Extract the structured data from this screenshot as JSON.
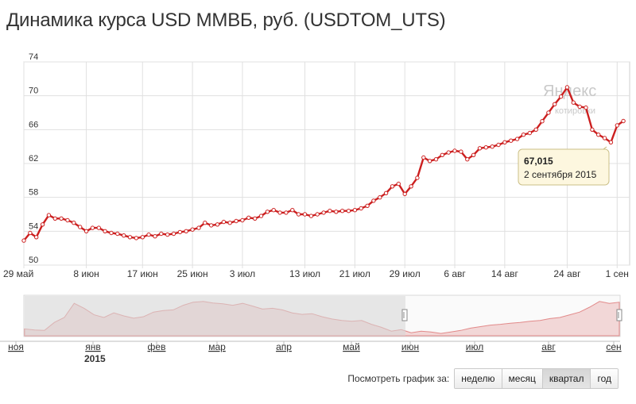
{
  "page": {
    "title": "Динамика курса USD ММВБ, руб. (USDTOM_UTS)"
  },
  "watermark": {
    "brand": "Яндекс",
    "sub": "котировки"
  },
  "tooltip": {
    "value": "67,015",
    "date": "2 сентября 2015"
  },
  "navigator": {
    "months": [
      "ноя",
      "янв",
      "фев",
      "мар",
      "апр",
      "май",
      "июн",
      "июл",
      "авг",
      "сен"
    ],
    "year": "2015",
    "profile": [
      0.18,
      0.15,
      0.14,
      0.35,
      0.48,
      0.85,
      0.72,
      0.55,
      0.48,
      0.6,
      0.52,
      0.46,
      0.5,
      0.62,
      0.66,
      0.68,
      0.8,
      0.88,
      0.9,
      0.86,
      0.84,
      0.8,
      0.85,
      0.78,
      0.7,
      0.72,
      0.68,
      0.6,
      0.56,
      0.58,
      0.5,
      0.44,
      0.4,
      0.38,
      0.4,
      0.3,
      0.22,
      0.12,
      0.16,
      0.08,
      0.12,
      0.1,
      0.06,
      0.1,
      0.14,
      0.2,
      0.24,
      0.28,
      0.3,
      0.33,
      0.35,
      0.38,
      0.4,
      0.45,
      0.48,
      0.55,
      0.62,
      0.75,
      0.9,
      0.85,
      0.88
    ]
  },
  "period": {
    "label": "Посмотреть график за:",
    "buttons": [
      "неделю",
      "месяц",
      "квартал",
      "год"
    ],
    "active": "квартал"
  },
  "colors": {
    "line": "#cc1f1f",
    "grid": "#e0e0e0",
    "navigator_fill": "#f2d7d7",
    "navigator_line": "#e28a8a",
    "navigator_shade": "#e6e6e6"
  },
  "chart_data": {
    "type": "line",
    "title": "Динамика курса USD ММВБ, руб. (USDTOM_UTS)",
    "ylim": [
      50,
      74
    ],
    "yticks": [
      50,
      54,
      58,
      62,
      66,
      70,
      74
    ],
    "xlim": [
      "2015-05-29",
      "2015-09-03"
    ],
    "xticks": [
      {
        "label": "29 май",
        "date": "2015-05-29"
      },
      {
        "label": "8 июн",
        "date": "2015-06-08"
      },
      {
        "label": "17 июн",
        "date": "2015-06-17"
      },
      {
        "label": "25 июн",
        "date": "2015-06-25"
      },
      {
        "label": "3 июл",
        "date": "2015-07-03"
      },
      {
        "label": "13 июл",
        "date": "2015-07-13"
      },
      {
        "label": "21 июл",
        "date": "2015-07-21"
      },
      {
        "label": "29 июл",
        "date": "2015-07-29"
      },
      {
        "label": "6 авг",
        "date": "2015-08-06"
      },
      {
        "label": "14 авг",
        "date": "2015-08-14"
      },
      {
        "label": "24 авг",
        "date": "2015-08-24"
      },
      {
        "label": "1 сен",
        "date": "2015-09-01"
      }
    ],
    "grid": true,
    "series": [
      {
        "points": [
          [
            "2015-05-29",
            52.9
          ],
          [
            "2015-05-30",
            53.8
          ],
          [
            "2015-05-31",
            53.3
          ],
          [
            "2015-06-01",
            54.8
          ],
          [
            "2015-06-02",
            55.9
          ],
          [
            "2015-06-03",
            55.5
          ],
          [
            "2015-06-04",
            55.5
          ],
          [
            "2015-06-05",
            55.3
          ],
          [
            "2015-06-06",
            55.0
          ],
          [
            "2015-06-07",
            54.5
          ],
          [
            "2015-06-08",
            54.0
          ],
          [
            "2015-06-09",
            54.4
          ],
          [
            "2015-06-10",
            54.4
          ],
          [
            "2015-06-11",
            54.0
          ],
          [
            "2015-06-12",
            53.8
          ],
          [
            "2015-06-13",
            53.7
          ],
          [
            "2015-06-14",
            53.5
          ],
          [
            "2015-06-15",
            53.3
          ],
          [
            "2015-06-16",
            53.2
          ],
          [
            "2015-06-17",
            53.3
          ],
          [
            "2015-06-18",
            53.6
          ],
          [
            "2015-06-19",
            53.4
          ],
          [
            "2015-06-20",
            53.7
          ],
          [
            "2015-06-21",
            53.6
          ],
          [
            "2015-06-22",
            53.7
          ],
          [
            "2015-06-23",
            53.9
          ],
          [
            "2015-06-24",
            54.0
          ],
          [
            "2015-06-25",
            54.2
          ],
          [
            "2015-06-26",
            54.4
          ],
          [
            "2015-06-27",
            55.0
          ],
          [
            "2015-06-28",
            54.7
          ],
          [
            "2015-06-29",
            54.8
          ],
          [
            "2015-06-30",
            55.1
          ],
          [
            "2015-07-01",
            55.0
          ],
          [
            "2015-07-02",
            55.2
          ],
          [
            "2015-07-03",
            55.3
          ],
          [
            "2015-07-04",
            55.6
          ],
          [
            "2015-07-05",
            55.5
          ],
          [
            "2015-07-06",
            55.8
          ],
          [
            "2015-07-07",
            56.3
          ],
          [
            "2015-07-08",
            56.5
          ],
          [
            "2015-07-09",
            56.2
          ],
          [
            "2015-07-10",
            56.2
          ],
          [
            "2015-07-11",
            56.5
          ],
          [
            "2015-07-12",
            56.0
          ],
          [
            "2015-07-13",
            56.0
          ],
          [
            "2015-07-14",
            55.8
          ],
          [
            "2015-07-15",
            56.0
          ],
          [
            "2015-07-16",
            56.2
          ],
          [
            "2015-07-17",
            56.4
          ],
          [
            "2015-07-18",
            56.3
          ],
          [
            "2015-07-19",
            56.4
          ],
          [
            "2015-07-20",
            56.4
          ],
          [
            "2015-07-21",
            56.5
          ],
          [
            "2015-07-22",
            56.7
          ],
          [
            "2015-07-23",
            57.0
          ],
          [
            "2015-07-24",
            57.6
          ],
          [
            "2015-07-25",
            58.0
          ],
          [
            "2015-07-26",
            58.5
          ],
          [
            "2015-07-27",
            59.3
          ],
          [
            "2015-07-28",
            59.6
          ],
          [
            "2015-07-29",
            58.4
          ],
          [
            "2015-07-30",
            59.3
          ],
          [
            "2015-07-31",
            60.3
          ],
          [
            "2015-08-01",
            62.7
          ],
          [
            "2015-08-02",
            62.3
          ],
          [
            "2015-08-03",
            62.5
          ],
          [
            "2015-08-04",
            63.0
          ],
          [
            "2015-08-05",
            63.3
          ],
          [
            "2015-08-06",
            63.5
          ],
          [
            "2015-08-07",
            63.4
          ],
          [
            "2015-08-08",
            62.5
          ],
          [
            "2015-08-09",
            63.0
          ],
          [
            "2015-08-10",
            63.8
          ],
          [
            "2015-08-11",
            63.9
          ],
          [
            "2015-08-12",
            64.0
          ],
          [
            "2015-08-13",
            64.2
          ],
          [
            "2015-08-14",
            64.5
          ],
          [
            "2015-08-15",
            64.7
          ],
          [
            "2015-08-16",
            64.9
          ],
          [
            "2015-08-17",
            65.4
          ],
          [
            "2015-08-18",
            65.6
          ],
          [
            "2015-08-19",
            66.0
          ],
          [
            "2015-08-20",
            67.0
          ],
          [
            "2015-08-21",
            68.0
          ],
          [
            "2015-08-22",
            69.0
          ],
          [
            "2015-08-23",
            69.9
          ],
          [
            "2015-08-24",
            71.0
          ],
          [
            "2015-08-25",
            69.2
          ],
          [
            "2015-08-26",
            68.7
          ],
          [
            "2015-08-27",
            68.6
          ],
          [
            "2015-08-28",
            66.0
          ],
          [
            "2015-08-29",
            65.4
          ],
          [
            "2015-08-30",
            65.0
          ],
          [
            "2015-08-31",
            64.5
          ],
          [
            "2015-09-01",
            66.5
          ],
          [
            "2015-09-02",
            67.015
          ]
        ]
      }
    ]
  }
}
